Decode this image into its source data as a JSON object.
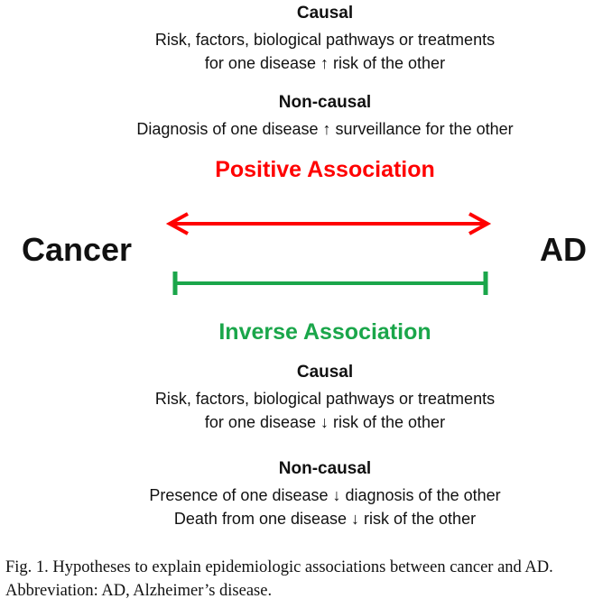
{
  "positive": {
    "causal": {
      "heading": "Causal",
      "line1": "Risk, factors, biological pathways or treatments",
      "line2": "for one disease ↑ risk of the other"
    },
    "noncausal": {
      "heading": "Non-causal",
      "line1": "Diagnosis of one disease ↑ surveillance for the other"
    },
    "label": "Positive Association",
    "color": "#ff0000"
  },
  "nodes": {
    "left": "Cancer",
    "right": "AD"
  },
  "inverse": {
    "label": "Inverse Association",
    "color": "#1aa64a",
    "causal": {
      "heading": "Causal",
      "line1": "Risk, factors, biological pathways or treatments",
      "line2": "for one disease ↓ risk of the other"
    },
    "noncausal": {
      "heading": "Non-causal",
      "line1": "Presence of one disease ↓ diagnosis of the other",
      "line2": "Death from one disease ↓ risk of the other"
    }
  },
  "caption": "Fig. 1.  Hypotheses to explain epidemiologic associations between cancer and AD. Abbreviation: AD, Alzheimer’s disease."
}
